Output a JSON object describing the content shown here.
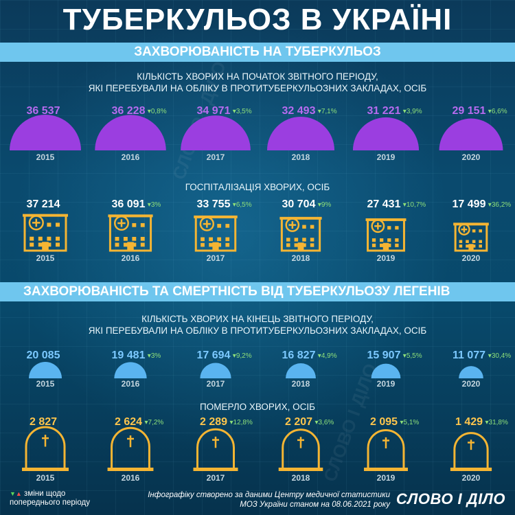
{
  "title": "ТУБЕРКУЛЬОЗ В УКРАЇНІ",
  "section1": "ЗАХВОРЮВАНІСТЬ НА ТУБЕРКУЛЬОЗ",
  "section2": "ЗАХВОРЮВАНІСТЬ ТА СМЕРТНІСТЬ ВІД ТУБЕРКУЛЬОЗУ ЛЕГЕНІВ",
  "legend": {
    "line1": "зміни щодо",
    "line2": "попереднього періоду"
  },
  "source": {
    "line1": "Інфографіку створено за даними Центру медичної статистики",
    "line2": "МОЗ України станом на 08.06.2021 року"
  },
  "logo": "СЛОВО І ДІЛО",
  "watermark": "СЛОВО І ДІЛО",
  "colors": {
    "band": "#6fc6ee",
    "purple": "#9b3ee0",
    "gold": "#f5b533",
    "blue": "#5ab4f0",
    "change": "#8ee07a"
  },
  "chart_data": [
    {
      "type": "bar",
      "title_line1": "КІЛЬКІСТЬ ХВОРИХ НА ПОЧАТОК ЗВІТНОГО ПЕРІОДУ,",
      "title_line2": "ЯКІ ПЕРЕБУВАЛИ НА ОБЛІКУ В ПРОТИТУБЕРКУЛЬОЗНИХ ЗАКЛАДАХ, ОСІБ",
      "categories": [
        "2015",
        "2016",
        "2017",
        "2018",
        "2019",
        "2020"
      ],
      "labels": [
        "36 537",
        "36 228",
        "34 971",
        "32 493",
        "31 221",
        "29 151"
      ],
      "values": [
        36537,
        36228,
        34971,
        32493,
        31221,
        29151
      ],
      "changes": [
        "",
        "▾0,8%",
        "▾3,5%",
        "▾7,1%",
        "▾3,9%",
        "▾6,6%"
      ]
    },
    {
      "type": "bar",
      "title": "ГОСПІТАЛІЗАЦІЯ ХВОРИХ, ОСІБ",
      "categories": [
        "2015",
        "2016",
        "2017",
        "2018",
        "2019",
        "2020"
      ],
      "labels": [
        "37 214",
        "36 091",
        "33 755",
        "30 704",
        "27 431",
        "17 499"
      ],
      "values": [
        37214,
        36091,
        33755,
        30704,
        27431,
        17499
      ],
      "changes": [
        "",
        "▾3%",
        "▾6,5%",
        "▾9%",
        "▾10,7%",
        "▾36,2%"
      ]
    },
    {
      "type": "bar",
      "title_line1": "КІЛЬКІСТЬ ХВОРИХ НА КІНЕЦЬ ЗВІТНОГО ПЕРІОДУ,",
      "title_line2": "ЯКІ ПЕРЕБУВАЛИ НА ОБЛІКУ  В ПРОТИТУБЕРКУЛЬОЗНИХ ЗАКЛАДАХ, ОСІБ",
      "categories": [
        "2015",
        "2016",
        "2017",
        "2018",
        "2019",
        "2020"
      ],
      "labels": [
        "20 085",
        "19 481",
        "17 694",
        "16 827",
        "15 907",
        "11 077"
      ],
      "values": [
        20085,
        19481,
        17694,
        16827,
        15907,
        11077
      ],
      "changes": [
        "",
        "▾3%",
        "▾9,2%",
        "▾4,9%",
        "▾5,5%",
        "▾30,4%"
      ]
    },
    {
      "type": "bar",
      "title": "ПОМЕРЛО ХВОРИХ, ОСІБ",
      "categories": [
        "2015",
        "2016",
        "2017",
        "2018",
        "2019",
        "2020"
      ],
      "labels": [
        "2 827",
        "2 624",
        "2 289",
        "2 207",
        "2 095",
        "1 429"
      ],
      "values": [
        2827,
        2624,
        2289,
        2207,
        2095,
        1429
      ],
      "changes": [
        "",
        "▾7,2%",
        "▾12,8%",
        "▾3,6%",
        "▾5,1%",
        "▾31,8%"
      ]
    }
  ]
}
